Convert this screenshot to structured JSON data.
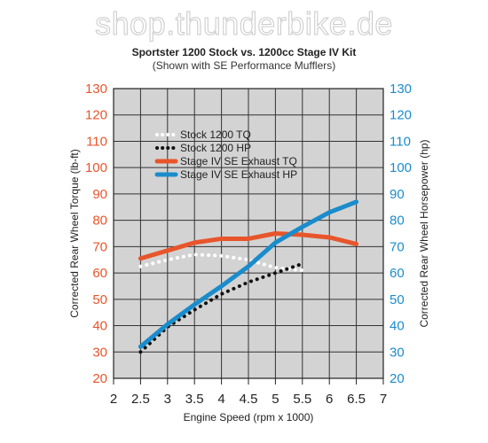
{
  "watermark": "shop.thunderbike.de",
  "colors": {
    "torque_axis": "#e8552b",
    "hp_axis": "#1a8ccc",
    "plot_bg": "#d3d3d3",
    "grid": "#333333"
  },
  "chart_data": {
    "type": "line",
    "title": "Sportster 1200 Stock vs. 1200cc Stage IV Kit",
    "subtitle": "(Shown with SE Performance Mufflers)",
    "xlabel": "Engine Speed (rpm x 1000)",
    "ylabel_left": "Corrected Rear Wheel Torque (lb-ft)",
    "ylabel_right": "Corrected Rear Wheel Horsepower (hp)",
    "xlim": [
      2,
      7
    ],
    "ylim": [
      20,
      130
    ],
    "x_ticks": [
      "2",
      "2.5",
      "3",
      "3.5",
      "4",
      "4.5",
      "5",
      "5.5",
      "6",
      "6.5",
      "7"
    ],
    "y_ticks": [
      "20",
      "30",
      "40",
      "50",
      "60",
      "70",
      "80",
      "90",
      "100",
      "110",
      "120",
      "130"
    ],
    "grid": true,
    "legend_position": "top-left",
    "series": [
      {
        "name": "Stock 1200 TQ",
        "color": "#ffffff",
        "style": "dotted",
        "axis": "left",
        "x": [
          2.5,
          3.0,
          3.5,
          4.0,
          4.5,
          5.0,
          5.5
        ],
        "y": [
          62.5,
          65.0,
          67.0,
          66.5,
          65.0,
          62.0,
          61.0
        ]
      },
      {
        "name": "Stock 1200 HP",
        "color": "#111111",
        "style": "dotted",
        "axis": "right",
        "x": [
          2.5,
          3.0,
          3.5,
          4.0,
          4.5,
          5.0,
          5.5
        ],
        "y": [
          30.0,
          39.5,
          46.0,
          52.0,
          56.5,
          60.0,
          63.5
        ]
      },
      {
        "name": "Stage IV SE Exhaust TQ",
        "color": "#e8552b",
        "style": "solid",
        "axis": "left",
        "x": [
          2.5,
          3.0,
          3.5,
          4.0,
          4.5,
          5.0,
          5.5,
          6.0,
          6.5
        ],
        "y": [
          65.5,
          68.5,
          71.5,
          73.0,
          73.0,
          75.0,
          74.5,
          73.5,
          71.0
        ]
      },
      {
        "name": "Stage IV SE Exhaust HP",
        "color": "#1a8ccc",
        "style": "solid",
        "axis": "right",
        "x": [
          2.5,
          3.0,
          3.5,
          4.0,
          4.5,
          5.0,
          5.5,
          6.0,
          6.5
        ],
        "y": [
          32.0,
          40.5,
          48.0,
          55.0,
          62.5,
          71.5,
          77.5,
          83.0,
          87.0
        ]
      }
    ]
  }
}
